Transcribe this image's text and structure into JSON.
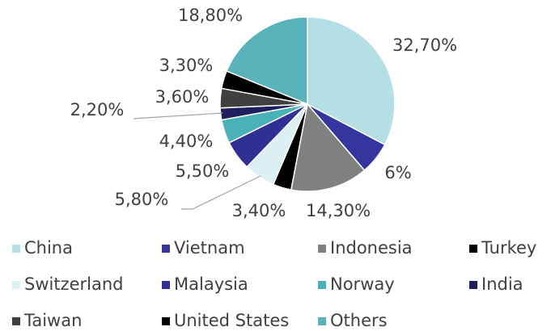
{
  "chart_data": {
    "type": "pie",
    "categories": [
      "China",
      "Vietnam",
      "Indonesia",
      "Turkey",
      "Switzerland",
      "Malaysia",
      "Norway",
      "India",
      "Taiwan",
      "United States",
      "Others"
    ],
    "values": [
      32.7,
      6,
      14.3,
      3.4,
      5.8,
      5.5,
      4.4,
      2.2,
      3.6,
      3.3,
      18.8
    ],
    "value_labels": [
      "32,70%",
      "6%",
      "14,30%",
      "3,40%",
      "5,80%",
      "5,50%",
      "4,40%",
      "2,20%",
      "3,60%",
      "3,30%",
      "18,80%"
    ],
    "colors": [
      "#b4dfe5",
      "#3535a0",
      "#808080",
      "#000000",
      "#dceff2",
      "#2f2f95",
      "#4bb1b8",
      "#1f1f5e",
      "#404040",
      "#000000",
      "#5ab2bb"
    ],
    "legend": "bottom"
  }
}
